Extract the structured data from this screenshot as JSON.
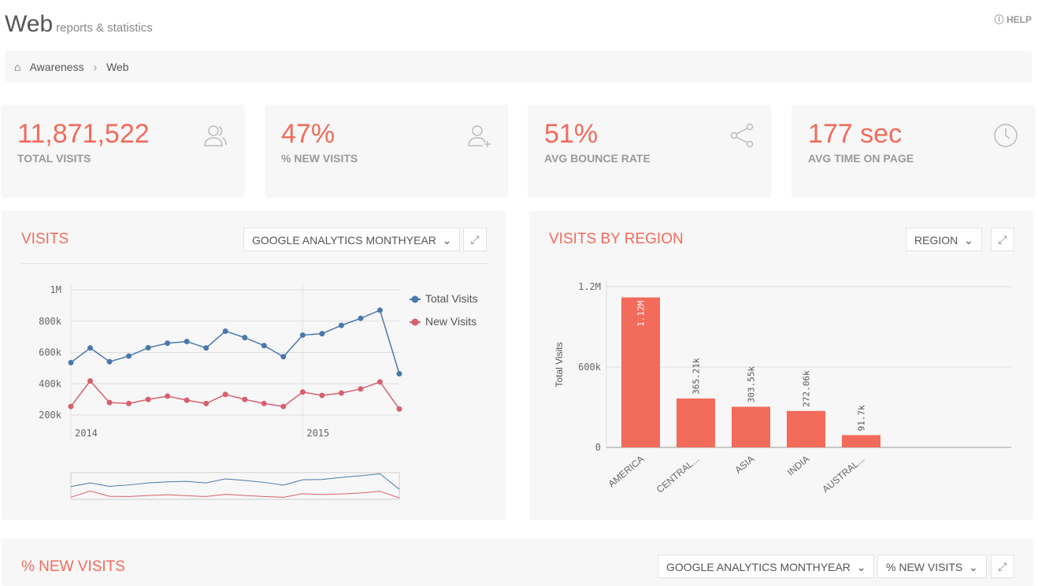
{
  "header": {
    "title": "Web",
    "subtitle": "reports & statistics",
    "help": "HELP"
  },
  "breadcrumb": [
    "Awareness",
    "Web"
  ],
  "kpis": [
    {
      "value": "11,871,522",
      "label": "TOTAL VISITS",
      "icon": "users-icon"
    },
    {
      "value": "47%",
      "label": "% NEW VISITS",
      "icon": "user-plus-icon"
    },
    {
      "value": "51%",
      "label": "AVG BOUNCE RATE",
      "icon": "share-icon"
    },
    {
      "value": "177 sec",
      "label": "AVG TIME ON PAGE",
      "icon": "clock-icon"
    }
  ],
  "visits": {
    "title": "VISITS",
    "dimension": "GOOGLE ANALYTICS MONTHYEAR"
  },
  "region": {
    "title": "VISITS BY REGION",
    "dimension": "REGION"
  },
  "newvisits": {
    "title": "% NEW VISITS",
    "dimension": "GOOGLE ANALYTICS MONTHYEAR",
    "measure": "% NEW VISITS"
  },
  "colors": {
    "accent": "#f26b5b",
    "total": "#4a78ac",
    "new": "#d6606f"
  },
  "chart_data": [
    {
      "type": "line",
      "ylim": [
        200000,
        1000000
      ],
      "yticks": [
        "1M",
        "800k",
        "600k",
        "400k",
        "200k"
      ],
      "ytick_values": [
        1000000,
        800000,
        600000,
        400000,
        200000
      ],
      "xticks": [
        {
          "index": 0,
          "label": "2014"
        },
        {
          "index": 12,
          "label": "2015"
        }
      ],
      "legend": "right",
      "series": [
        {
          "name": "Total Visits",
          "values": [
            535000,
            629000,
            541000,
            577000,
            630000,
            659000,
            670000,
            629000,
            736000,
            695000,
            644000,
            573000,
            711000,
            720000,
            773000,
            818000,
            870000,
            464000
          ]
        },
        {
          "name": "New Visits",
          "values": [
            255000,
            418000,
            280000,
            274000,
            300000,
            321000,
            295000,
            274000,
            332000,
            300000,
            274000,
            255000,
            347000,
            326000,
            341000,
            367000,
            412000,
            239000
          ]
        }
      ]
    },
    {
      "type": "bar",
      "ylabel": "Total Visits",
      "ylim": [
        0,
        1200000
      ],
      "yticks": [
        "1.2M",
        "600k",
        "0"
      ],
      "ytick_values": [
        1200000,
        600000,
        0
      ],
      "categories": [
        "AMERICA",
        "CENTRAL...",
        "ASIA",
        "INDIA",
        "AUSTRAL..."
      ],
      "values": [
        1120000,
        365210,
        303550,
        272060,
        91700
      ],
      "labels": [
        "1.12M",
        "365.21k",
        "303.55k",
        "272.06k",
        "91.7k"
      ]
    }
  ]
}
